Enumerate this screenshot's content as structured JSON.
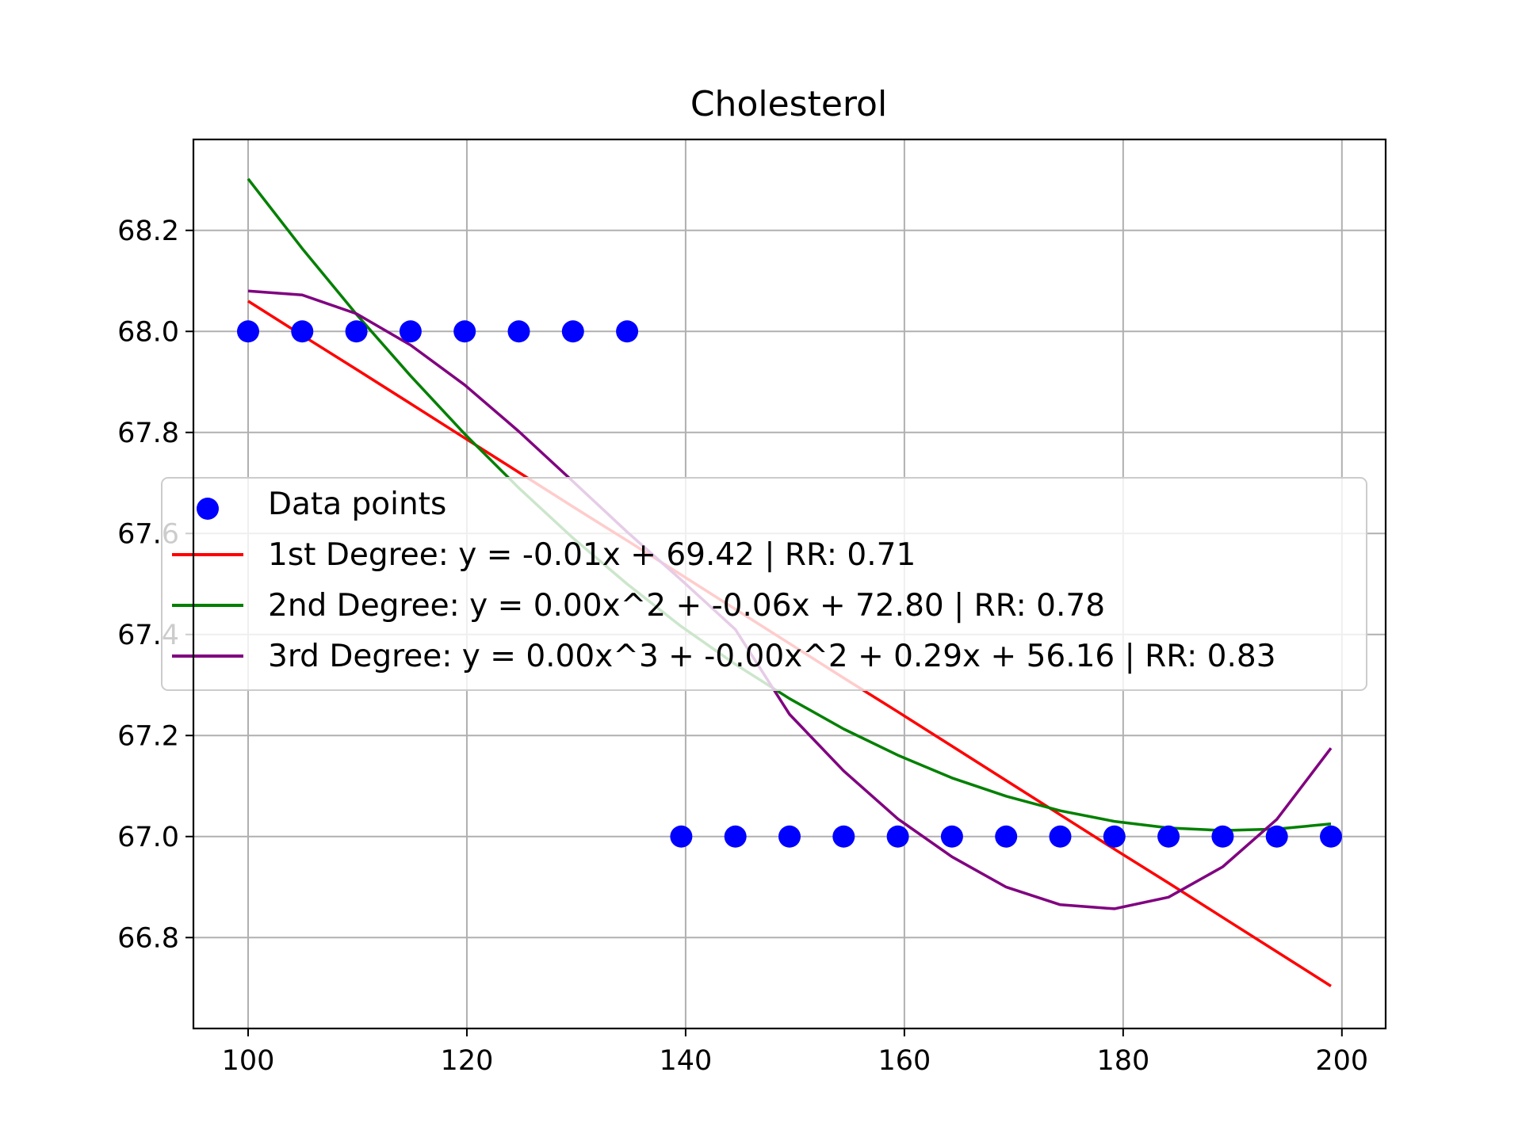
{
  "chart_data": {
    "type": "scatter",
    "title": "Cholesterol",
    "xlabel": "",
    "ylabel": "",
    "xlim": [
      95,
      204
    ],
    "ylim": [
      66.62,
      68.38
    ],
    "xticks": [
      100,
      120,
      140,
      160,
      180,
      200
    ],
    "yticks": [
      66.8,
      67.0,
      67.2,
      67.4,
      67.6,
      67.8,
      68.0,
      68.2
    ],
    "xtick_labels": [
      "100",
      "120",
      "140",
      "160",
      "180",
      "200"
    ],
    "ytick_labels": [
      "66.8",
      "67.0",
      "67.2",
      "67.4",
      "67.6",
      "67.8",
      "68.0",
      "68.2"
    ],
    "grid": true,
    "legend_position": "center-left",
    "x": [
      100,
      104.95,
      109.9,
      114.85,
      119.8,
      124.75,
      129.7,
      134.65,
      139.6,
      144.55,
      149.5,
      154.45,
      159.4,
      164.35,
      169.3,
      174.25,
      179.2,
      184.15,
      189.1,
      194.05,
      199
    ],
    "series": [
      {
        "name": "Data points",
        "kind": "scatter",
        "color": "#0000ff",
        "values": [
          68,
          68,
          68,
          68,
          68,
          68,
          68,
          68,
          67,
          67,
          67,
          67,
          67,
          67,
          67,
          67,
          67,
          67,
          67,
          67,
          67
        ]
      },
      {
        "name": "1st Degree: y = -0.01x + 69.42 | RR: 0.71",
        "kind": "line",
        "color": "#ff0000",
        "values": [
          68.06,
          67.992,
          67.925,
          67.857,
          67.789,
          67.721,
          67.653,
          67.586,
          67.518,
          67.45,
          67.382,
          67.314,
          67.247,
          67.179,
          67.111,
          67.043,
          66.975,
          66.908,
          66.84,
          66.772,
          66.704
        ]
      },
      {
        "name": "2nd Degree: y = 0.00x^2 + -0.06x + 72.80 | RR: 0.78",
        "kind": "line",
        "color": "#008000",
        "values": [
          68.302,
          68.164,
          68.034,
          67.912,
          67.797,
          67.69,
          67.591,
          67.5,
          67.416,
          67.341,
          67.273,
          67.213,
          67.161,
          67.116,
          67.08,
          67.051,
          67.03,
          67.017,
          67.012,
          67.015,
          67.025
        ]
      },
      {
        "name": "3rd Degree: y = 0.00x^3 + -0.00x^2 + 0.29x + 56.16 | RR: 0.83",
        "kind": "line",
        "color": "#800080",
        "values": [
          68.08,
          68.072,
          68.035,
          67.973,
          67.894,
          67.802,
          67.703,
          67.603,
          67.508,
          67.41,
          67.242,
          67.13,
          67.035,
          66.96,
          66.9,
          66.865,
          66.857,
          66.88,
          66.94,
          67.034,
          67.175
        ]
      }
    ]
  }
}
